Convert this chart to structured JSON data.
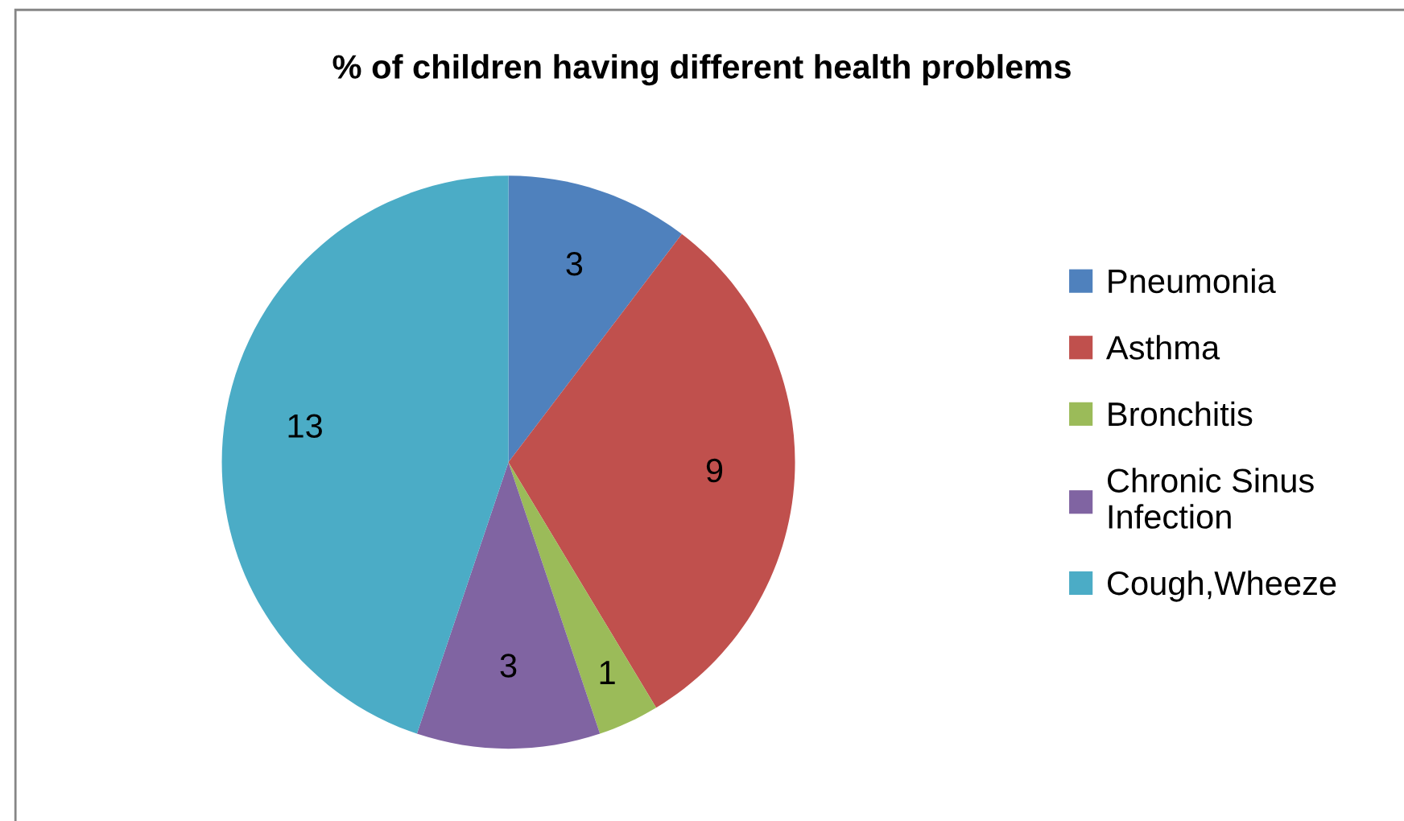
{
  "chart_data": {
    "type": "pie",
    "title": "% of children having different health problems",
    "categories": [
      "Pneumonia",
      "Asthma",
      "Bronchitis",
      "Chronic Sinus\nInfection",
      "Cough,Wheeze"
    ],
    "values": [
      3,
      9,
      1,
      3,
      13
    ],
    "colors": [
      "#4f81bd",
      "#c0504d",
      "#9bbb59",
      "#8064a2",
      "#4bacc6"
    ],
    "data_labels": true,
    "legend": "right"
  }
}
